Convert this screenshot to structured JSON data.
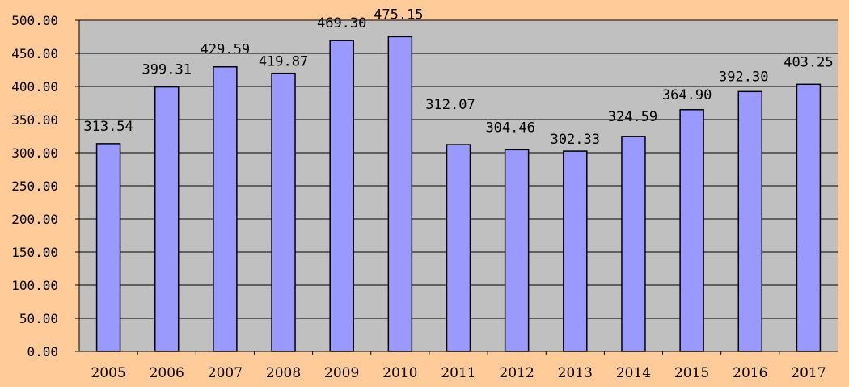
{
  "chart_data": {
    "type": "bar",
    "title": "",
    "xlabel": "",
    "ylabel": "",
    "categories": [
      "2005",
      "2006",
      "2007",
      "2008",
      "2009",
      "2010",
      "2011",
      "2012",
      "2013",
      "2014",
      "2015",
      "2016",
      "2017"
    ],
    "values": [
      313.54,
      399.31,
      429.59,
      419.87,
      469.3,
      475.15,
      312.07,
      304.46,
      302.33,
      324.59,
      364.9,
      392.3,
      403.25
    ],
    "data_labels": [
      "313.54",
      "399.31",
      "429.59",
      "419.87",
      "469.30",
      "475.15",
      "312.07",
      "304.46",
      "302.33",
      "324.59",
      "364.90",
      "392.30",
      "403.25"
    ],
    "ylim": [
      0,
      500
    ],
    "yticks": [
      0,
      50,
      100,
      150,
      200,
      250,
      300,
      350,
      400,
      450,
      500
    ],
    "ytick_labels": [
      "0.00",
      "50.00",
      "100.00",
      "150.00",
      "200.00",
      "250.00",
      "300.00",
      "350.00",
      "400.00",
      "450.00",
      "500.00"
    ],
    "grid": true,
    "legend": "none",
    "colors": {
      "background": "#FFCC99",
      "plot_area": "#C0C0C0",
      "bar": "#9999FF",
      "bar_edge": "#000000",
      "grid": "#000000"
    }
  }
}
